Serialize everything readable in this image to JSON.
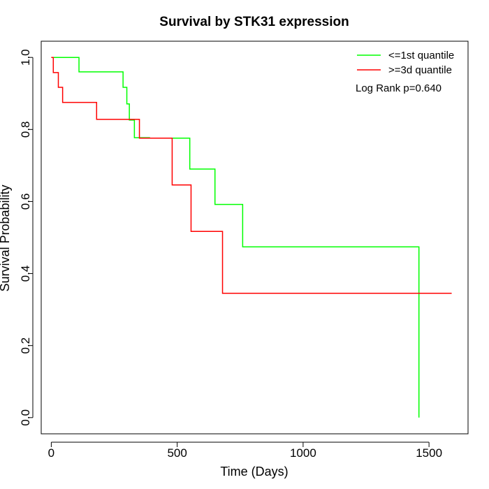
{
  "chart_data": {
    "type": "line",
    "title": "Survival by STK31 expression",
    "xlabel": "Time (Days)",
    "ylabel": "Survival Probability",
    "xlim": [
      -40,
      1655
    ],
    "ylim": [
      -0.045,
      1.045
    ],
    "x_ticks": [
      0,
      500,
      1000,
      1500
    ],
    "x_tick_labels": [
      "0",
      "500",
      "1000",
      "1500"
    ],
    "y_ticks": [
      0.0,
      0.2,
      0.4,
      0.6,
      0.8,
      1.0
    ],
    "y_tick_labels": [
      "0.0",
      "0.2",
      "0.4",
      "0.6",
      "0.8",
      "1.0"
    ],
    "grid": false,
    "legend_position": "top-right",
    "annotation": "Log Rank p=0.640",
    "series": [
      {
        "name": "<=1st quantile",
        "color": "#00ff00",
        "step": true,
        "x": [
          0,
          110,
          285,
          300,
          310,
          330,
          390,
          550,
          650,
          760,
          1460,
          1460
        ],
        "y": [
          1.0,
          0.96,
          0.917,
          0.871,
          0.826,
          0.777,
          0.776,
          0.69,
          0.592,
          0.474,
          0.474,
          0.0
        ]
      },
      {
        "name": ">=3d quantile",
        "color": "#ff0000",
        "step": true,
        "x": [
          0,
          8,
          28,
          45,
          180,
          350,
          480,
          555,
          680,
          1590
        ],
        "y": [
          1.0,
          0.958,
          0.917,
          0.875,
          0.828,
          0.776,
          0.646,
          0.517,
          0.345,
          0.345
        ]
      }
    ]
  }
}
